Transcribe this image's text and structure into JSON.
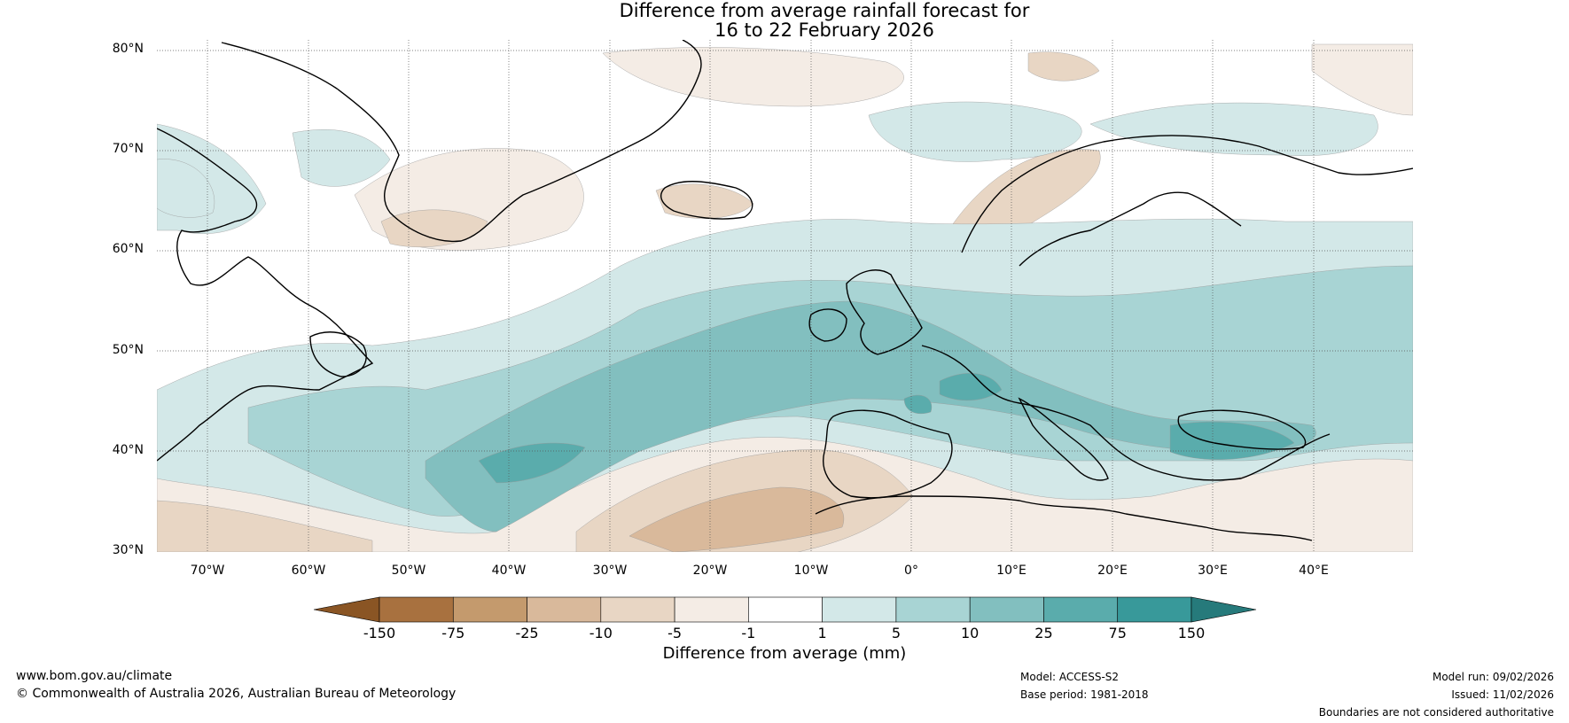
{
  "title": {
    "line1": "Difference from average rainfall forecast for",
    "line2": "16 to 22 February 2026"
  },
  "map": {
    "lat_labels": [
      "80°N",
      "70°N",
      "60°N",
      "50°N",
      "40°N",
      "30°N"
    ],
    "lon_labels": [
      "70°W",
      "60°W",
      "50°W",
      "40°W",
      "30°W",
      "20°W",
      "10°W",
      "0°",
      "10°E",
      "20°E",
      "30°E",
      "40°E"
    ],
    "colors": {
      "dry_150": "#8a5524",
      "dry_75": "#a8713f",
      "dry_25": "#c49a6d",
      "dry_10": "#d9b99b",
      "dry_5": "#e8d6c4",
      "dry_1": "#f4ece5",
      "neutral": "#ffffff",
      "wet_1": "#d3e8e8",
      "wet_5": "#a8d4d4",
      "wet_10": "#82bfbf",
      "wet_25": "#5aacac",
      "wet_75": "#38999a",
      "wet_150": "#267a7b"
    }
  },
  "colorbar": {
    "ticks": [
      "-150",
      "-75",
      "-25",
      "-10",
      "-5",
      "-1",
      "1",
      "5",
      "10",
      "25",
      "75",
      "150"
    ],
    "label": "Difference from average (mm)"
  },
  "footer": {
    "website": "www.bom.gov.au/climate",
    "copyright": "© Commonwealth of Australia 2026, Australian Bureau of Meteorology",
    "model": "Model: ACCESS-S2",
    "base_period": "Base period: 1981-2018",
    "model_run": "Model run: 09/02/2026",
    "issued": "Issued: 11/02/2026",
    "boundaries": "Boundaries are not considered authoritative"
  }
}
